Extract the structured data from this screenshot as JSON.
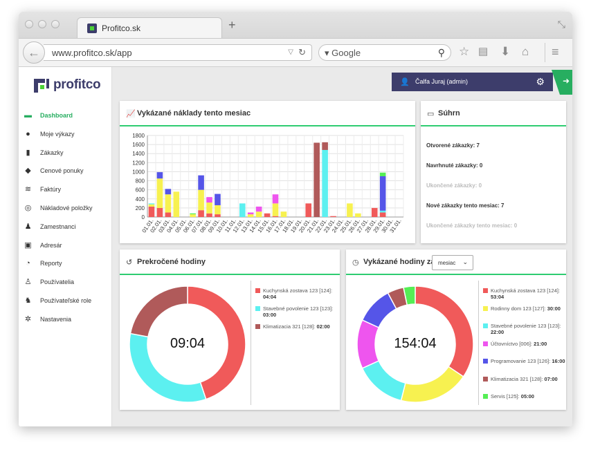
{
  "browser": {
    "tab_title": "Profitco.sk",
    "url": "www.profitco.sk/app",
    "search_engine": "Google"
  },
  "brand": {
    "name": "profitco"
  },
  "user": {
    "name": "Čalfa Juraj (admin)"
  },
  "sidebar": {
    "items": [
      {
        "label": "Dashboard",
        "icon": "dashboard-icon",
        "active": true
      },
      {
        "label": "Moje výkazy",
        "icon": "clock-icon"
      },
      {
        "label": "Zákazky",
        "icon": "document-icon"
      },
      {
        "label": "Cenové ponuky",
        "icon": "tags-icon"
      },
      {
        "label": "Faktúry",
        "icon": "layers-icon"
      },
      {
        "label": "Nákladové položky",
        "icon": "coins-icon"
      },
      {
        "label": "Zamestnanci",
        "icon": "users-icon"
      },
      {
        "label": "Adresár",
        "icon": "address-book-icon"
      },
      {
        "label": "Reporty",
        "icon": "pie-chart-icon"
      },
      {
        "label": "Používatelia",
        "icon": "user-gear-icon"
      },
      {
        "label": "Používateľské role",
        "icon": "users-gear-icon"
      },
      {
        "label": "Nastavenia",
        "icon": "cogs-icon"
      }
    ]
  },
  "costs_card": {
    "title": "Vykázané náklady tento mesiac"
  },
  "summary_card": {
    "title": "Súhrn",
    "lines": [
      {
        "text": "Otvorené zákazky: 7",
        "muted": false
      },
      {
        "text": "Navrhnuté zákazky: 0",
        "muted": false
      },
      {
        "text": "Ukončené zákazky: 0",
        "muted": true
      },
      {
        "text": "Nové zákazky tento mesiac: 7",
        "muted": false
      },
      {
        "text": "Ukončené zákazky tento mesiac: 0",
        "muted": true
      }
    ]
  },
  "overtime_card": {
    "title": "Prekročené hodiny",
    "center": "09:04",
    "legend": [
      {
        "label": "Kuchynská zostava 123 [124]:",
        "value": "04:04"
      },
      {
        "label": "Stavebné povolenie 123 [123]:",
        "value": "03:00"
      },
      {
        "label": "Klimatizacia 321 [128]:",
        "value": "02:00"
      }
    ]
  },
  "hours_card": {
    "title": "Vykázané hodiny za",
    "select_value": "mesiac",
    "center": "154:04",
    "legend": [
      {
        "label": "Kuchynská zostava 123 [124]:",
        "value": "53:04"
      },
      {
        "label": "Rodinny dom 123 [127]:",
        "value": "30:00"
      },
      {
        "label": "Stavebné povolenie 123 [123]:",
        "value": "22:00"
      },
      {
        "label": "Účtovníctvo [006]:",
        "value": "21:00"
      },
      {
        "label": "Programovanie 123 [126]:",
        "value": "16:00"
      },
      {
        "label": "Klimatizacia 321 [128]:",
        "value": "07:00"
      },
      {
        "label": "Servis [125]:",
        "value": "05:00"
      }
    ]
  },
  "colors": {
    "red": "#f05a5a",
    "yellow": "#f7f150",
    "cyan": "#5cf0f0",
    "magenta": "#ee55ee",
    "blue": "#5555e8",
    "brown": "#b05a5a",
    "green": "#55ee55",
    "accent": "#2ecc71",
    "brand": "#3d3d6b"
  },
  "chart_data": [
    {
      "type": "bar",
      "stacked": true,
      "ylim": [
        0,
        1800
      ],
      "yticks": [
        0,
        200,
        400,
        600,
        800,
        1000,
        1200,
        1400,
        1600,
        1800
      ],
      "categories": [
        "01.01.",
        "02.01.",
        "03.01.",
        "04.01.",
        "05.01.",
        "06.01.",
        "07.01.",
        "08.01.",
        "09.01.",
        "10.01.",
        "11.01.",
        "12.01.",
        "13.01.",
        "14.01.",
        "15.01.",
        "16.01.",
        "17.01.",
        "18.01.",
        "19.01.",
        "20.01.",
        "21.01.",
        "22.01.",
        "23.01.",
        "24.01.",
        "25.01.",
        "26.01.",
        "27.01.",
        "28.01.",
        "29.01.",
        "30.01.",
        "31.01."
      ],
      "series": [
        {
          "color": "#f05a5a",
          "values": [
            230,
            200,
            100,
            0,
            0,
            0,
            150,
            80,
            60,
            0,
            0,
            0,
            0,
            0,
            80,
            20,
            0,
            0,
            0,
            300,
            0,
            0,
            20,
            0,
            0,
            0,
            0,
            200,
            100,
            0,
            0
          ]
        },
        {
          "color": "#f7f150",
          "values": [
            50,
            650,
            400,
            560,
            0,
            60,
            450,
            240,
            200,
            0,
            0,
            0,
            60,
            120,
            0,
            280,
            120,
            0,
            0,
            0,
            0,
            0,
            0,
            0,
            300,
            80,
            0,
            0,
            0,
            0,
            0
          ]
        },
        {
          "color": "#5cf0f0",
          "values": [
            20,
            0,
            0,
            0,
            0,
            0,
            0,
            0,
            0,
            0,
            0,
            300,
            0,
            0,
            0,
            0,
            0,
            0,
            0,
            0,
            0,
            1480,
            0,
            0,
            0,
            0,
            0,
            0,
            40,
            0,
            0
          ]
        },
        {
          "color": "#ee55ee",
          "values": [
            0,
            0,
            0,
            0,
            0,
            0,
            0,
            120,
            0,
            0,
            0,
            0,
            40,
            110,
            0,
            200,
            0,
            0,
            0,
            0,
            0,
            0,
            0,
            0,
            0,
            0,
            0,
            0,
            0,
            0,
            0
          ]
        },
        {
          "color": "#5555e8",
          "values": [
            0,
            140,
            120,
            0,
            0,
            0,
            320,
            0,
            250,
            0,
            0,
            0,
            0,
            0,
            0,
            0,
            0,
            0,
            0,
            0,
            0,
            0,
            0,
            0,
            0,
            0,
            0,
            0,
            760,
            0,
            0
          ]
        },
        {
          "color": "#b05a5a",
          "values": [
            0,
            0,
            0,
            0,
            0,
            0,
            0,
            0,
            0,
            0,
            0,
            0,
            0,
            0,
            0,
            0,
            0,
            0,
            0,
            0,
            1640,
            170,
            0,
            0,
            0,
            0,
            0,
            0,
            0,
            0,
            0
          ]
        },
        {
          "color": "#55ee55",
          "values": [
            0,
            0,
            0,
            0,
            0,
            20,
            0,
            0,
            0,
            0,
            0,
            0,
            0,
            0,
            0,
            0,
            0,
            0,
            0,
            0,
            0,
            0,
            0,
            0,
            0,
            0,
            0,
            0,
            80,
            0,
            0
          ]
        }
      ],
      "grid": true
    },
    {
      "type": "pie",
      "donut": true,
      "labels": [
        "Kuchynská zostava 123 [124]",
        "Stavebné povolenie 123 [123]",
        "Klimatizacia 321 [128]"
      ],
      "values": [
        4.067,
        3.0,
        2.0
      ],
      "colors": [
        "#f05a5a",
        "#5cf0f0",
        "#b05a5a"
      ]
    },
    {
      "type": "pie",
      "donut": true,
      "labels": [
        "Kuchynská zostava 123 [124]",
        "Rodinny dom 123 [127]",
        "Stavebné povolenie 123 [123]",
        "Účtovníctvo [006]",
        "Programovanie 123 [126]",
        "Klimatizacia 321 [128]",
        "Servis [125]"
      ],
      "values": [
        53.07,
        30,
        22,
        21,
        16,
        7,
        5
      ],
      "colors": [
        "#f05a5a",
        "#f7f150",
        "#5cf0f0",
        "#ee55ee",
        "#5555e8",
        "#b05a5a",
        "#55ee55"
      ]
    }
  ]
}
